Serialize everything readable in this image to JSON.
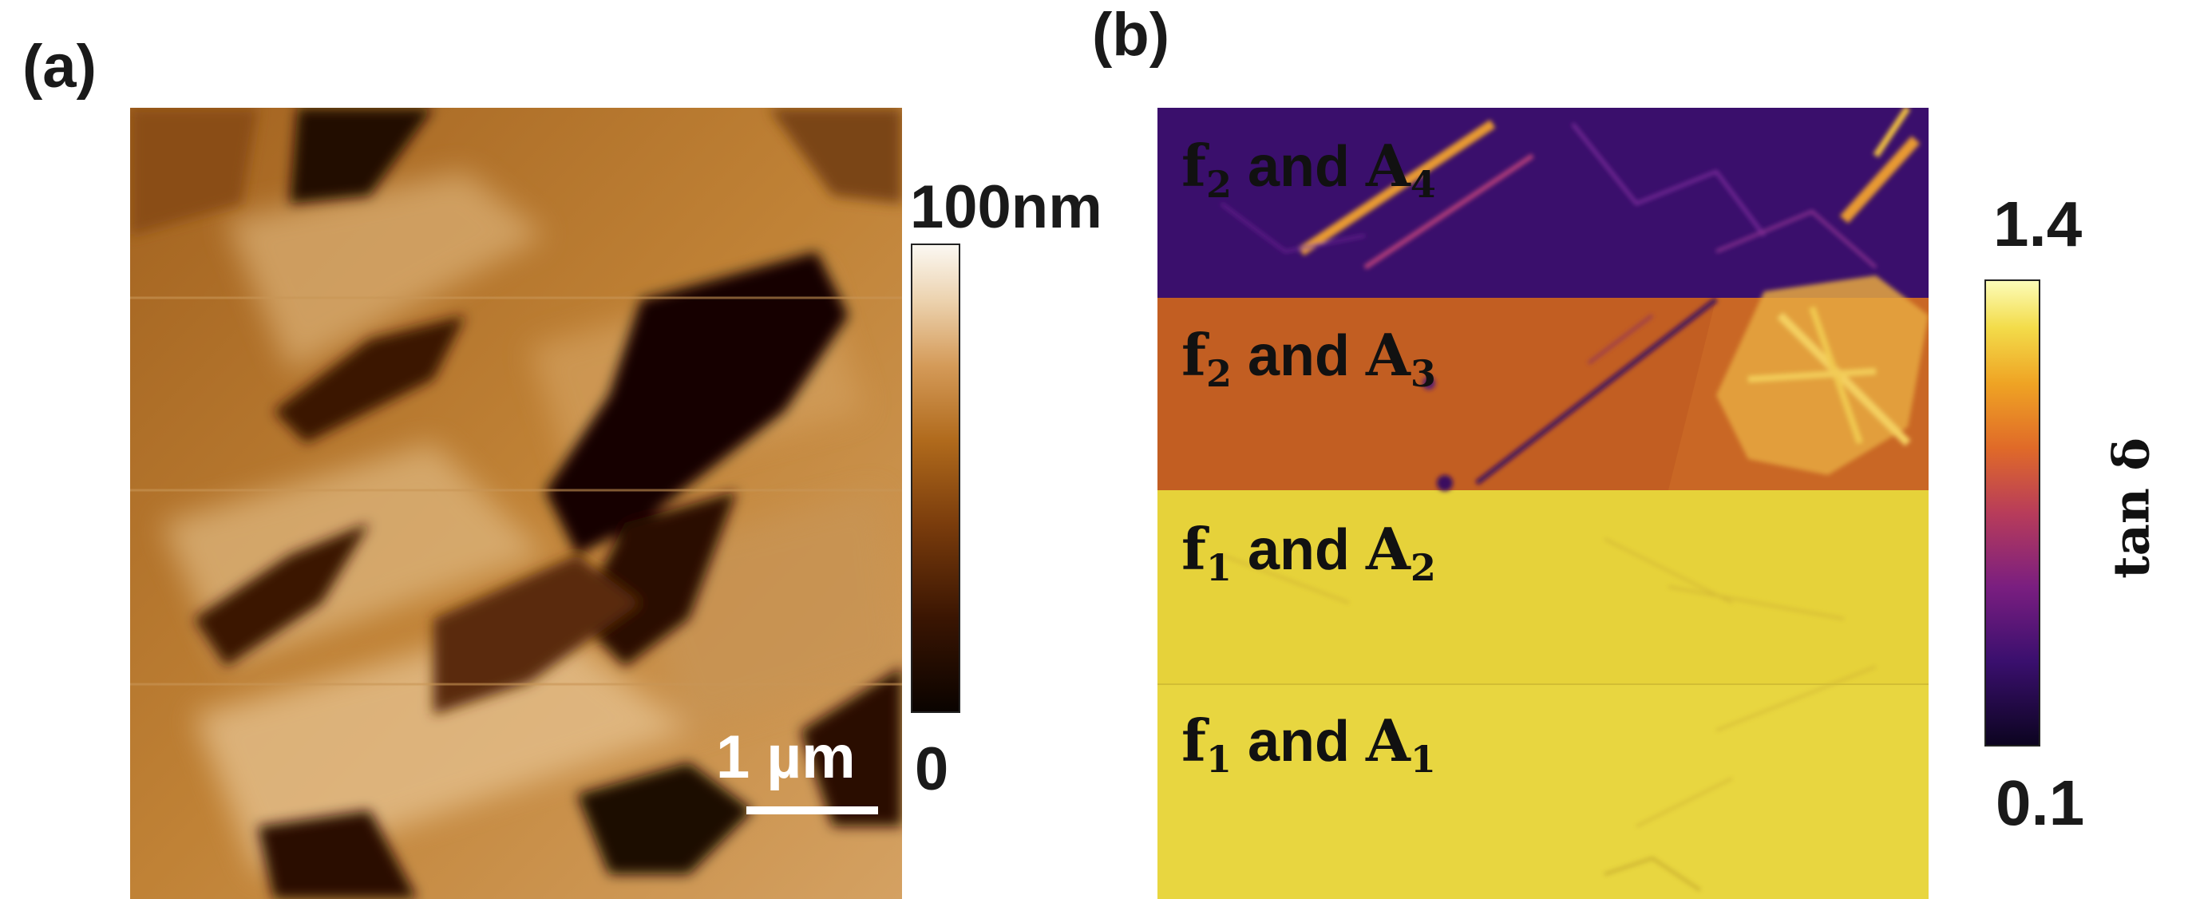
{
  "panel_a": {
    "label": "(a)",
    "colorbar": {
      "max_label": "100nm",
      "min_label": "0"
    },
    "scale_bar": {
      "label": "1 µm"
    }
  },
  "panel_b": {
    "label": "(b)",
    "colorbar": {
      "max_label": "1.4",
      "min_label": "0.1",
      "axis_label": "tan δ"
    },
    "strips": [
      {
        "f": "f",
        "f_sub": "2",
        "and": "and",
        "a": "A",
        "a_sub": "4"
      },
      {
        "f": "f",
        "f_sub": "2",
        "and": "and",
        "a": "A",
        "a_sub": "3"
      },
      {
        "f": "f",
        "f_sub": "1",
        "and": "and",
        "a": "A",
        "a_sub": "2"
      },
      {
        "f": "f",
        "f_sub": "1",
        "and": "and",
        "a": "A",
        "a_sub": "1"
      }
    ]
  },
  "colors": {
    "afm_dark": "#1a0800",
    "afm_mid": "#b06a1c",
    "afm_light": "#e8c28c",
    "purple": "#3a0f6e",
    "orange": "#c8601e",
    "yellow": "#e8d63c"
  }
}
